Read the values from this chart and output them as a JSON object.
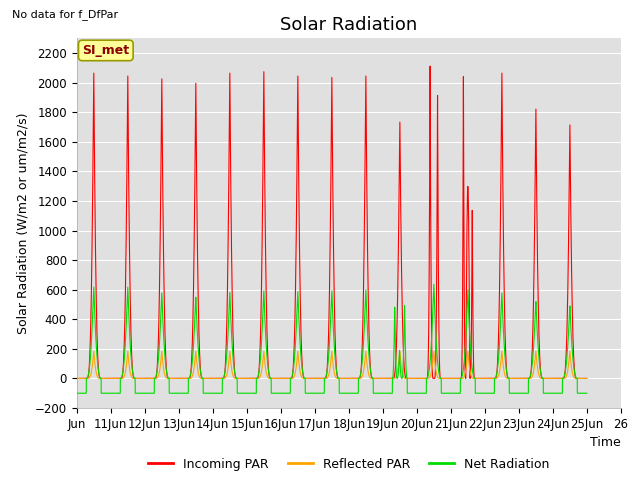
{
  "title": "Solar Radiation",
  "ylabel": "Solar Radiation (W/m2 or um/m2/s)",
  "xlabel": "Time",
  "top_left_text": "No data for f_DfPar",
  "station_label": "SI_met",
  "ylim": [
    -200,
    2300
  ],
  "yticks": [
    -200,
    0,
    200,
    400,
    600,
    800,
    1000,
    1200,
    1400,
    1600,
    1800,
    2000,
    2200
  ],
  "x_start": 10,
  "x_end": 26,
  "xtick_labels": [
    "Jun",
    "11Jun",
    "12Jun",
    "13Jun",
    "14Jun",
    "15Jun",
    "16Jun",
    "17Jun",
    "18Jun",
    "19Jun",
    "20Jun",
    "21Jun",
    "22Jun",
    "23Jun",
    "24Jun",
    "25Jun",
    "26"
  ],
  "xtick_positions": [
    10,
    11,
    12,
    13,
    14,
    15,
    16,
    17,
    18,
    19,
    20,
    21,
    22,
    23,
    24,
    25,
    26
  ],
  "bg_color": "#e0e0e0",
  "line_colors": {
    "incoming": "#ff0000",
    "reflected": "#ffa500",
    "net": "#00dd00"
  },
  "legend_labels": [
    "Incoming PAR",
    "Reflected PAR",
    "Net Radiation"
  ],
  "title_fontsize": 13,
  "axis_fontsize": 9,
  "tick_fontsize": 8.5,
  "incoming_peaks": [
    2120,
    2100,
    2080,
    2050,
    2120,
    2130,
    2100,
    2090,
    2100,
    1780,
    2130,
    2100,
    2120,
    1870,
    1760
  ],
  "net_peaks": [
    630,
    630,
    590,
    560,
    595,
    605,
    600,
    605,
    610,
    510,
    650,
    610,
    590,
    530,
    500
  ],
  "reflected_peak": 190,
  "night_net": -100
}
